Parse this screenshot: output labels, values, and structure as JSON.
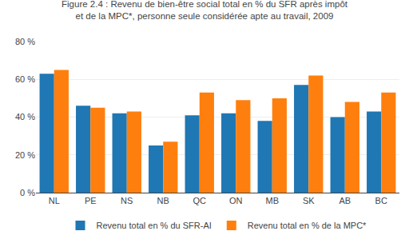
{
  "chart_data": {
    "type": "bar",
    "title": "Figure 2.4 : Revenu de bien-être social total en % du SFR après impôt\net de la MPC*, personne seule considérée apte au travail, 2009",
    "categories": [
      "NL",
      "PE",
      "NS",
      "NB",
      "QC",
      "ON",
      "MB",
      "SK",
      "AB",
      "BC"
    ],
    "series": [
      {
        "name": "Revenu total en % du SFR-AI",
        "values": [
          63,
          46,
          42,
          25,
          41,
          42,
          38,
          57,
          40,
          43
        ]
      },
      {
        "name": "Revenu total en % de la MPC*",
        "values": [
          65,
          45,
          43,
          27,
          53,
          49,
          50,
          62,
          48,
          53
        ]
      }
    ],
    "ylim": [
      0,
      80
    ],
    "yticks": [
      {
        "value": 0,
        "label": "0 %"
      },
      {
        "value": 20,
        "label": "20 %"
      },
      {
        "value": 40,
        "label": "40 %"
      },
      {
        "value": 60,
        "label": "60 %"
      },
      {
        "value": 80,
        "label": "80 %"
      }
    ],
    "grid": true,
    "legend": "bottom"
  }
}
